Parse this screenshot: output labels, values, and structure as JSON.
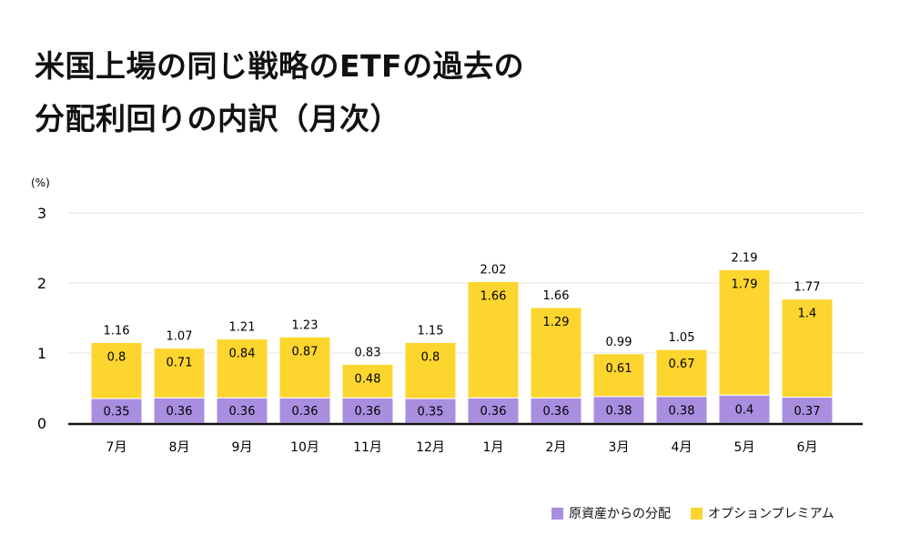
{
  "chart_data": {
    "type": "bar",
    "stacked": true,
    "title_lines": [
      "米国上場の同じ戦略のETFの過去の",
      "分配利回りの内訳（月次）"
    ],
    "ylabel": "(%)",
    "xlabel": "",
    "ylim": [
      0,
      3
    ],
    "yticks": [
      "0",
      "1",
      "2",
      "3"
    ],
    "grid": true,
    "legend_position": "bottom-right",
    "categories": [
      "7月",
      "8月",
      "9月",
      "10月",
      "11月",
      "12月",
      "1月",
      "2月",
      "3月",
      "4月",
      "5月",
      "6月"
    ],
    "series": [
      {
        "name": "原資産からの分配",
        "color": "#a98ee0",
        "values": [
          0.35,
          0.36,
          0.36,
          0.36,
          0.36,
          0.35,
          0.36,
          0.36,
          0.38,
          0.38,
          0.4,
          0.37
        ]
      },
      {
        "name": "オプションプレミアム",
        "color": "#fdd52f",
        "values": [
          0.8,
          0.71,
          0.84,
          0.87,
          0.48,
          0.8,
          1.66,
          1.29,
          0.61,
          0.67,
          1.79,
          1.4
        ]
      }
    ],
    "totals": [
      "1.16",
      "1.07",
      "1.21",
      "1.23",
      "0.83",
      "1.15",
      "2.02",
      "1.66",
      "0.99",
      "1.05",
      "2.19",
      "1.77"
    ]
  }
}
